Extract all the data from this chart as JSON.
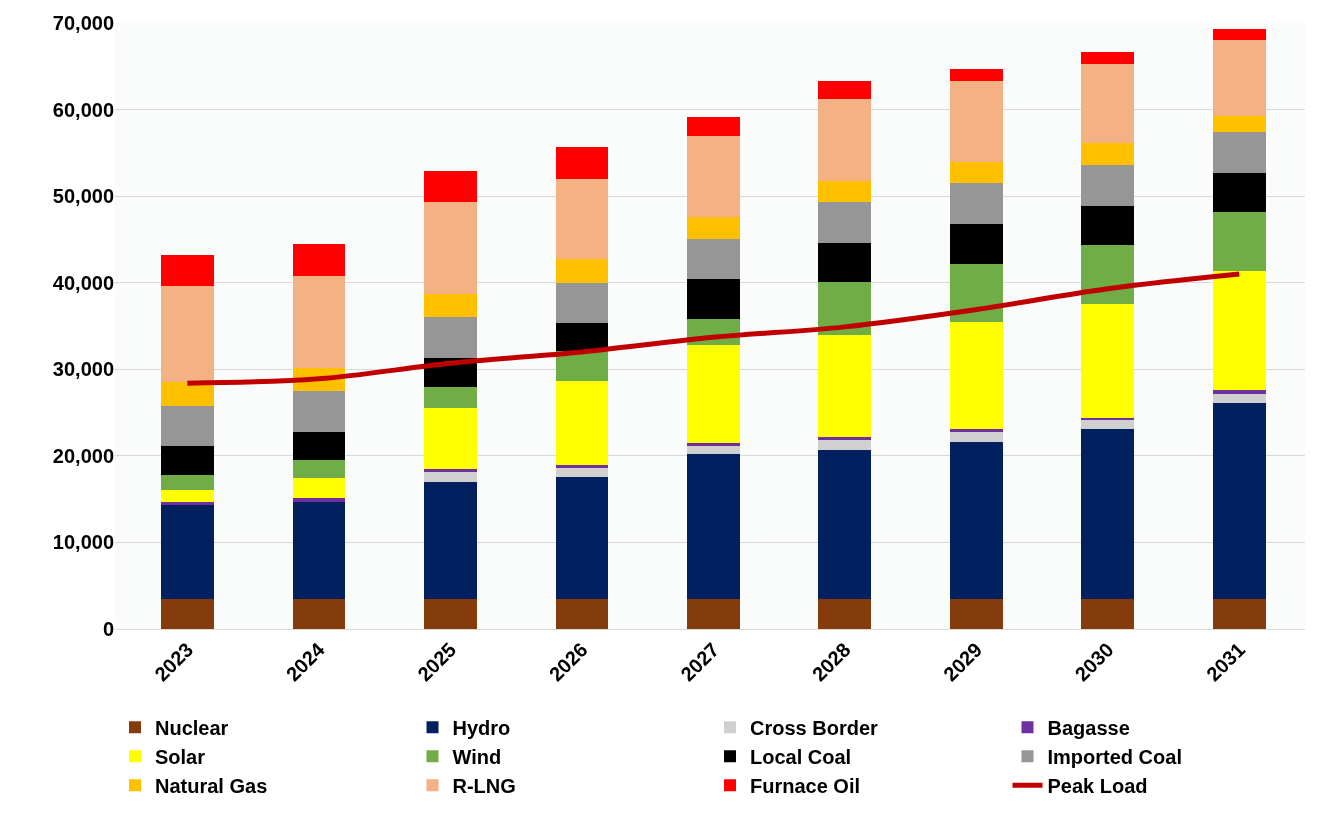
{
  "chart_data": {
    "type": "bar",
    "stacked": true,
    "categories": [
      "2023",
      "2024",
      "2025",
      "2026",
      "2027",
      "2028",
      "2029",
      "2030",
      "2031"
    ],
    "ylim": [
      0,
      70000
    ],
    "yticks": [
      0,
      {
        "value": 10000,
        "label": "10,000"
      },
      {
        "value": 20000,
        "label": "20,000"
      },
      {
        "value": 30000,
        "label": "30,000"
      },
      {
        "value": 40000,
        "label": "40,000"
      },
      {
        "value": 50000,
        "label": "50,000"
      },
      {
        "value": 60000,
        "label": "60,000"
      },
      {
        "value": 70000,
        "label": "70,000"
      }
    ],
    "grid": "y",
    "legend": "bottom",
    "series": [
      {
        "name": "Nuclear",
        "color": "#843c0c",
        "values": [
          3500,
          3500,
          3500,
          3500,
          3500,
          3500,
          3500,
          3500,
          3500
        ]
      },
      {
        "name": "Hydro",
        "color": "#002060",
        "values": [
          10800,
          11200,
          13500,
          14100,
          16700,
          17200,
          18100,
          19600,
          22600
        ]
      },
      {
        "name": "Cross Border",
        "color": "#d0d0d0",
        "values": [
          0,
          0,
          1100,
          1000,
          900,
          1100,
          1100,
          1000,
          1100
        ]
      },
      {
        "name": "Bagasse",
        "color": "#7030a0",
        "values": [
          400,
          400,
          400,
          400,
          400,
          400,
          400,
          300,
          400
        ]
      },
      {
        "name": "Solar",
        "color": "#ffff00",
        "values": [
          1300,
          2400,
          7000,
          9700,
          11300,
          11800,
          12400,
          13100,
          13700
        ]
      },
      {
        "name": "Wind",
        "color": "#70ad47",
        "values": [
          1800,
          2000,
          2500,
          3400,
          3000,
          6100,
          6700,
          6800,
          6900
        ]
      },
      {
        "name": "Local Coal",
        "color": "#000000",
        "values": [
          3300,
          3300,
          3300,
          3200,
          4600,
          4500,
          4600,
          4600,
          4500
        ]
      },
      {
        "name": "Imported Coal",
        "color": "#969696",
        "values": [
          4700,
          4700,
          4700,
          4700,
          4700,
          4700,
          4700,
          4700,
          4700
        ]
      },
      {
        "name": "Natural Gas",
        "color": "#ffc000",
        "values": [
          2700,
          2700,
          2700,
          2700,
          2500,
          2500,
          2500,
          2500,
          1900
        ]
      },
      {
        "name": "R-LNG",
        "color": "#f4b183",
        "values": [
          11100,
          10600,
          10600,
          9300,
          9400,
          9400,
          9300,
          9200,
          8700
        ]
      },
      {
        "name": "Furnace Oil",
        "color": "#ff0000",
        "values": [
          3600,
          3700,
          3600,
          3700,
          2200,
          2100,
          1400,
          1300,
          1300
        ]
      },
      {
        "name": "Peak Load",
        "type": "line",
        "color": "#c00000",
        "values": [
          28400,
          28900,
          30700,
          32000,
          33700,
          34900,
          36900,
          39300,
          41000
        ]
      }
    ]
  }
}
